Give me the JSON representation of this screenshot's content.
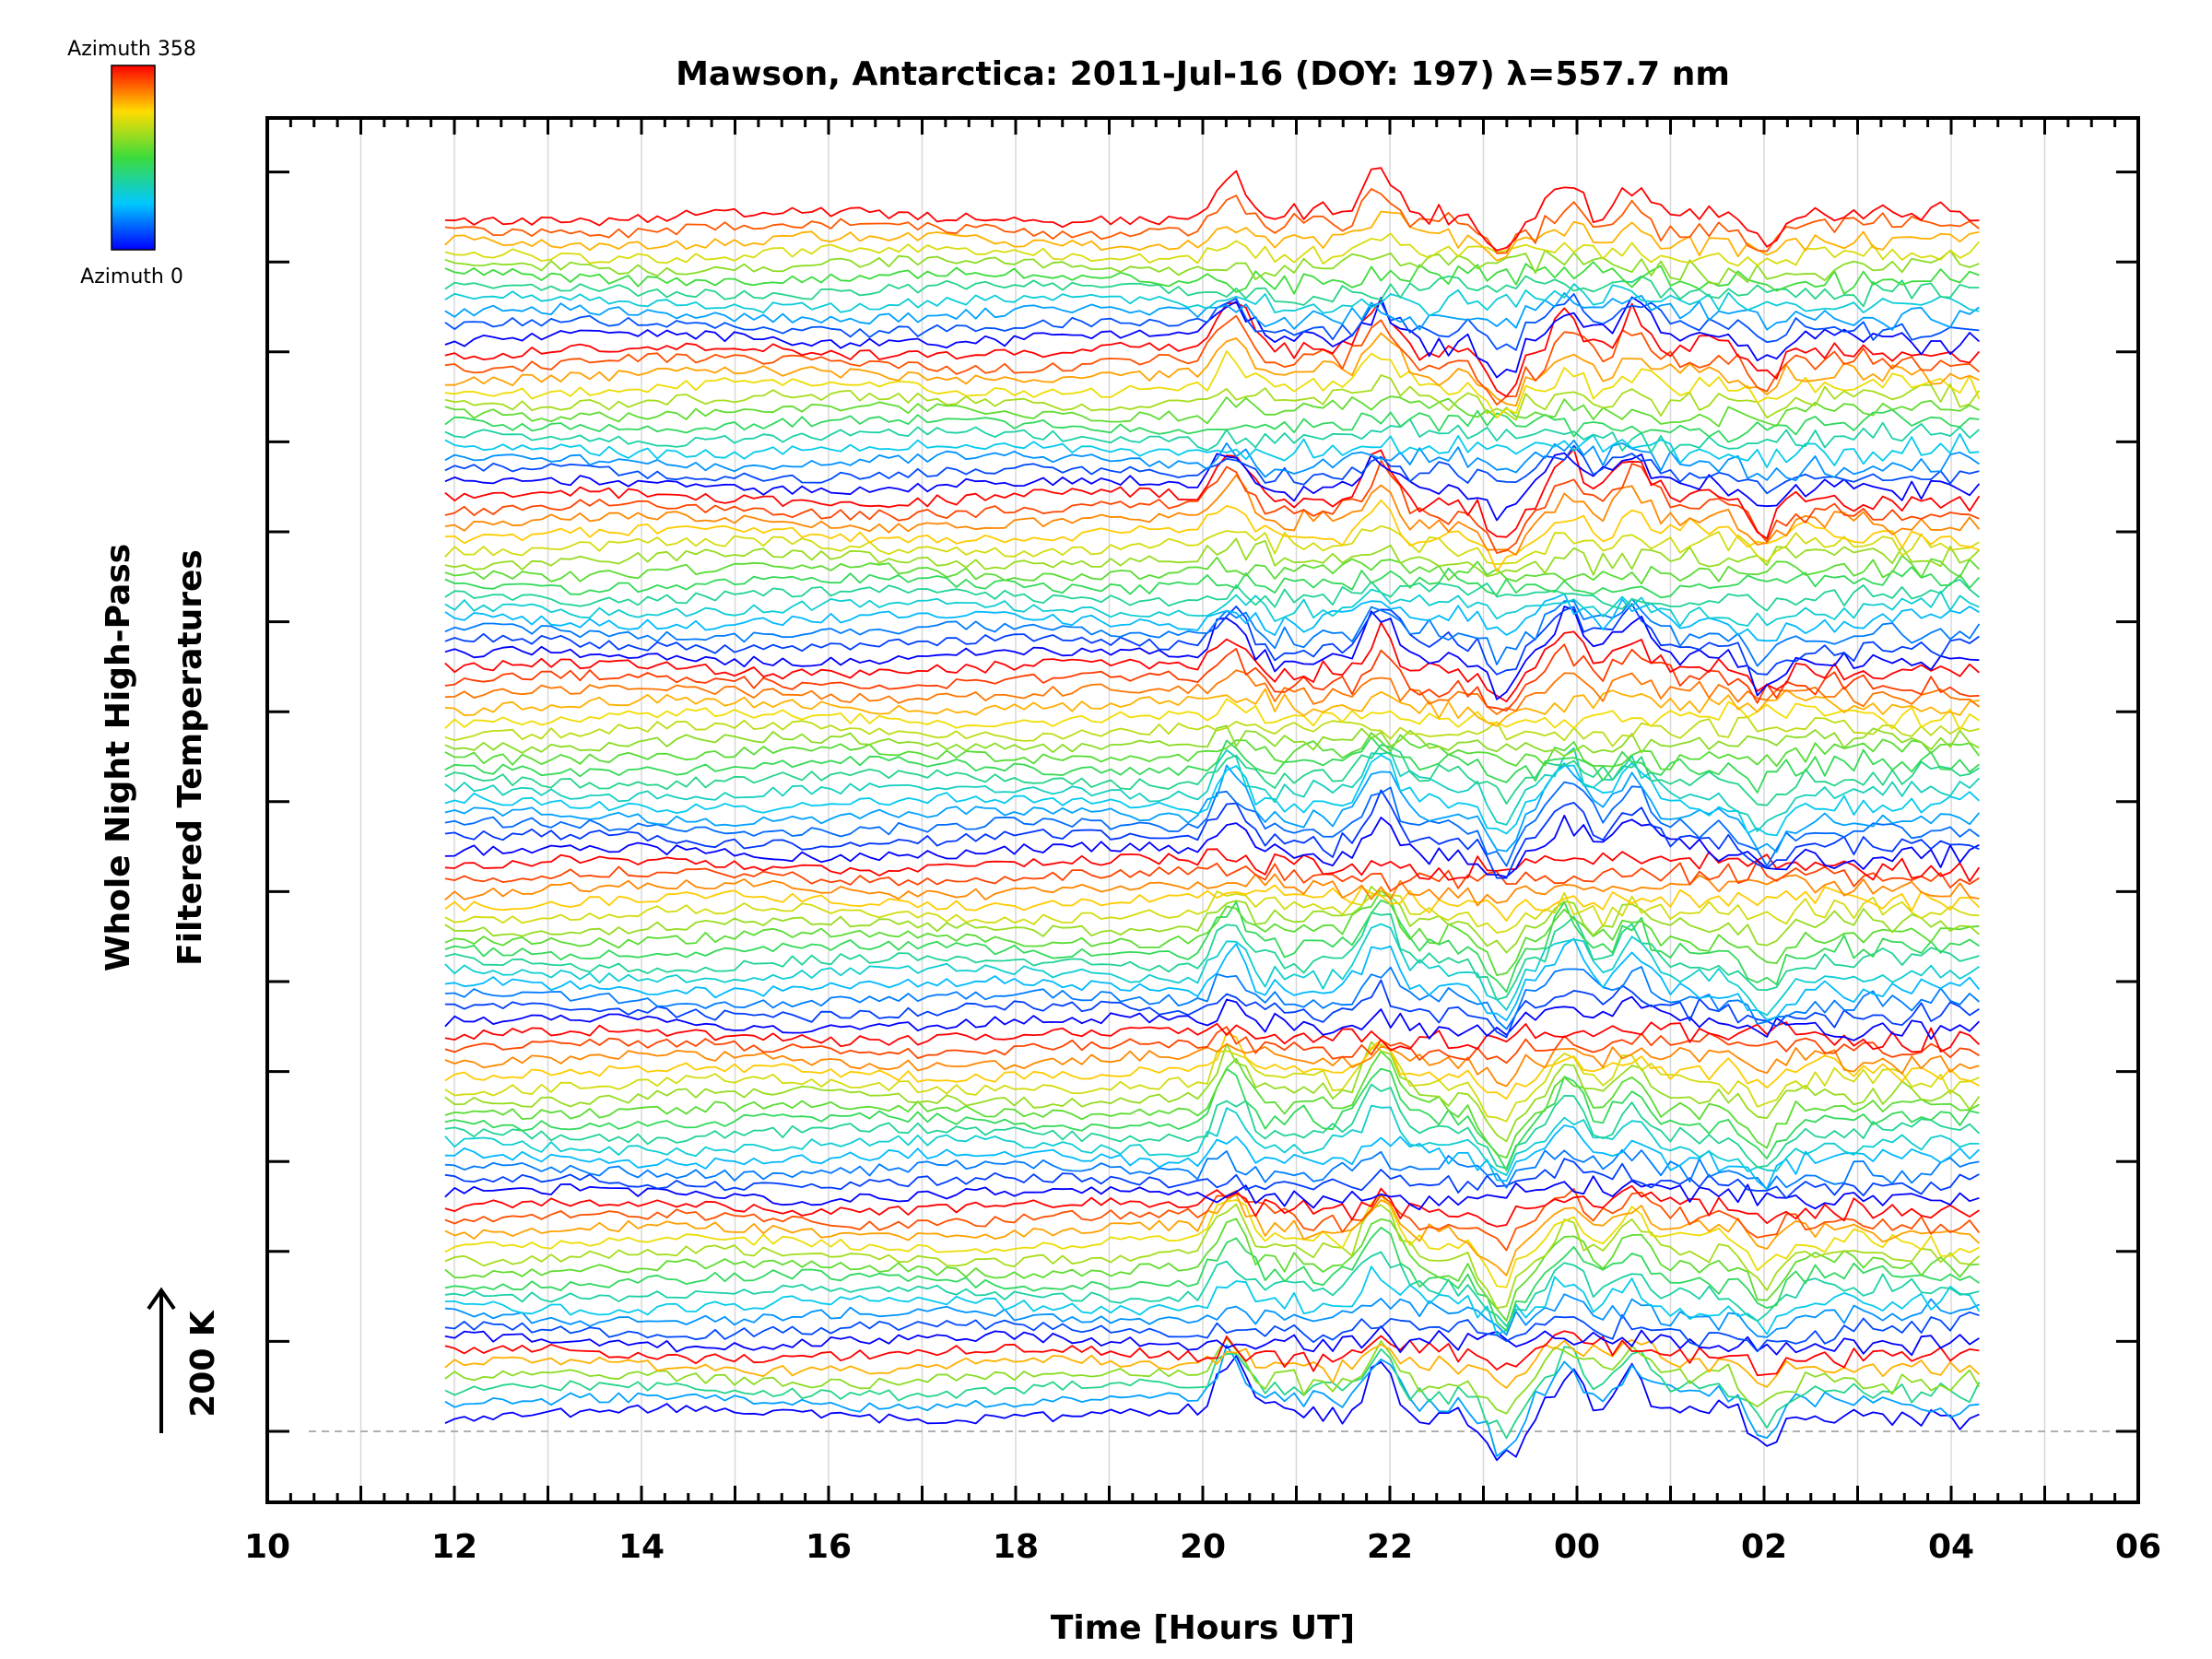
{
  "chart_data": {
    "type": "line",
    "title": "Mawson, Antarctica: 2011-Jul-16 (DOY: 197) λ=557.7 nm",
    "xlabel": "Time [Hours UT]",
    "ylabel_line1": "Whole Night High-Pass",
    "ylabel_line2": "Filtered Temperatures",
    "scale_label": "200 K",
    "x_range_hours": [
      10,
      30
    ],
    "x_tick_labels": [
      "10",
      "12",
      "14",
      "16",
      "18",
      "20",
      "22",
      "00",
      "02",
      "04",
      "06"
    ],
    "data_start_hour": 11.9,
    "data_end_hour": 28.3,
    "grid": "vertical lines every hour",
    "colorbar": {
      "top_label": "Azimuth 358",
      "bottom_label": "Azimuth 0",
      "colormap": "rainbow (blue → cyan → green → yellow → red)",
      "placement": "top-left"
    },
    "series_description": "Stacked per-zone temperature traces, each offset vertically and coloured by azimuth; 8 rings of zones, azimuth 0 to 358 within each ring",
    "rings": 8,
    "zones_per_ring": [
      6,
      12,
      14,
      14,
      16,
      14,
      12,
      11
    ],
    "notable_disturbances_hours": [
      20.3,
      21.9,
      23.2,
      23.9,
      24.6,
      26.0
    ],
    "colors": {
      "axis": "#000000",
      "grid": "#d3d3d3",
      "baseline": "#b0b0b0",
      "azimuth_0": "#0000ff",
      "azimuth_358": "#ff0000"
    }
  }
}
